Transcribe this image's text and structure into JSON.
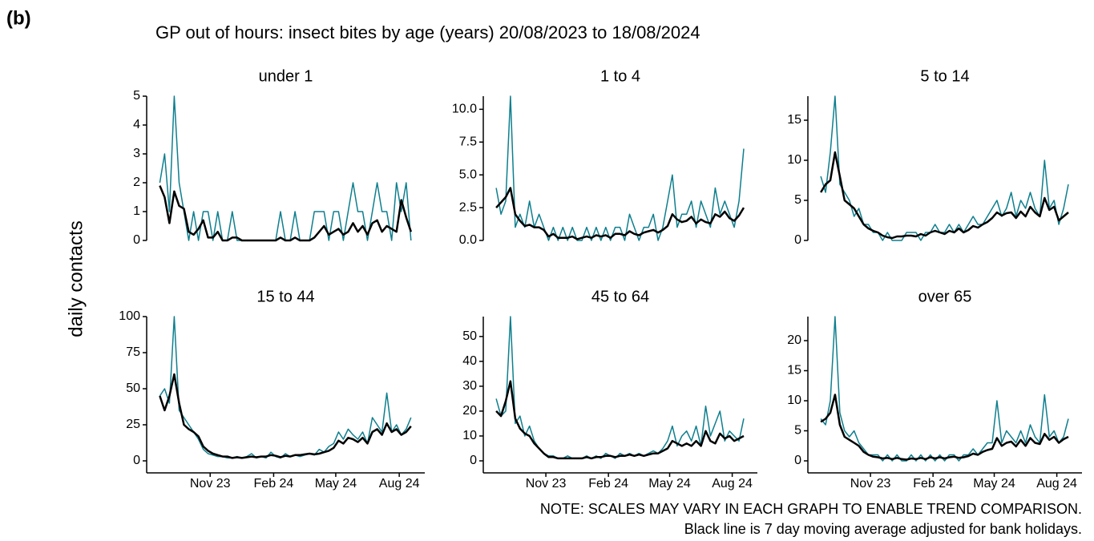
{
  "panel_label": "(b)",
  "chart_data": {
    "type": "line",
    "title": "GP out of hours: insect bites by age (years) 20/08/2023 to 18/08/2024",
    "y_label": "daily contacts",
    "x": [
      0,
      7,
      14,
      21,
      28,
      35,
      42,
      49,
      56,
      63,
      70,
      77,
      84,
      91,
      98,
      105,
      112,
      119,
      126,
      133,
      140,
      147,
      154,
      161,
      168,
      175,
      182,
      189,
      196,
      203,
      210,
      217,
      224,
      231,
      238,
      245,
      252,
      259,
      266,
      273,
      280,
      287,
      294,
      301,
      308,
      315,
      322,
      329,
      336,
      343,
      350,
      357,
      364
    ],
    "xlim": [
      -19,
      384
    ],
    "xticks": [
      {
        "value": 73,
        "label": "Nov 23"
      },
      {
        "value": 165,
        "label": "Feb 24"
      },
      {
        "value": 255,
        "label": "May 24"
      },
      {
        "value": 347,
        "label": "Aug 24"
      }
    ],
    "panels": [
      {
        "title": "under 1",
        "ylim": [
          0,
          5
        ],
        "yticks": [
          0,
          1,
          2,
          3,
          4,
          5
        ],
        "series": [
          {
            "color": "#0e7f8e",
            "values": [
              2,
              3,
              1,
              5,
              2,
              1,
              0,
              1,
              0,
              1,
              1,
              0,
              1,
              0,
              0,
              1,
              0,
              0,
              0,
              0,
              0,
              0,
              0,
              0,
              0,
              1,
              0,
              0,
              1,
              0,
              0,
              0,
              1,
              1,
              1,
              0,
              1,
              1,
              0,
              1,
              2,
              1,
              1,
              0,
              1,
              2,
              1,
              1,
              0,
              2,
              1,
              2,
              0
            ]
          },
          {
            "color": "#000000",
            "values": [
              1.9,
              1.5,
              0.6,
              1.7,
              1.2,
              1.1,
              0.3,
              0.2,
              0.4,
              0.7,
              0.1,
              0.1,
              0.3,
              0,
              0,
              0.1,
              0.1,
              0,
              0,
              0,
              0,
              0,
              0,
              0,
              0,
              0.1,
              0,
              0,
              0.1,
              0,
              0,
              0,
              0.1,
              0.3,
              0.5,
              0.2,
              0.3,
              0.4,
              0.2,
              0.3,
              0.6,
              0.3,
              0.5,
              0.2,
              0.6,
              0.7,
              0.3,
              0.5,
              0.4,
              0.3,
              1.4,
              0.8,
              0.3
            ]
          }
        ]
      },
      {
        "title": "1 to 4",
        "ylim": [
          0,
          11
        ],
        "yticks": [
          {
            "value": 0,
            "label": "0.0"
          },
          {
            "value": 2.5,
            "label": "2.5"
          },
          {
            "value": 5,
            "label": "5.0"
          },
          {
            "value": 7.5,
            "label": "7.5"
          },
          {
            "value": 10,
            "label": "10.0"
          }
        ],
        "series": [
          {
            "color": "#0e7f8e",
            "values": [
              4,
              2,
              3,
              11,
              1,
              2,
              1,
              3,
              1,
              2,
              1,
              0,
              1,
              0,
              1,
              0,
              1,
              0,
              0,
              1,
              0,
              1,
              0,
              1,
              0,
              1,
              1,
              0,
              2,
              1,
              0,
              1,
              1,
              2,
              0,
              1,
              3,
              5,
              1,
              2,
              2,
              3,
              1,
              3,
              2,
              1,
              4,
              2,
              3,
              2,
              1,
              3,
              7
            ]
          },
          {
            "color": "#000000",
            "values": [
              2.5,
              2.9,
              3.3,
              4.0,
              2.0,
              1.5,
              1.1,
              1.2,
              1.0,
              1.0,
              0.8,
              0.3,
              0.5,
              0.2,
              0.2,
              0.2,
              0.3,
              0.1,
              0.2,
              0.3,
              0.2,
              0.4,
              0.3,
              0.4,
              0.2,
              0.5,
              0.5,
              0.4,
              0.7,
              0.5,
              0.4,
              0.6,
              0.7,
              0.8,
              0.6,
              0.8,
              1.1,
              2.0,
              1.6,
              1.4,
              1.5,
              1.8,
              1.3,
              1.6,
              1.4,
              1.3,
              2.0,
              1.8,
              2.2,
              1.7,
              1.5,
              1.9,
              2.5
            ]
          }
        ]
      },
      {
        "title": "5 to 14",
        "ylim": [
          0,
          18
        ],
        "yticks": [
          0,
          5,
          10,
          15
        ],
        "series": [
          {
            "color": "#0e7f8e",
            "values": [
              8,
              6,
              11,
              18,
              7,
              6,
              5,
              3,
              4,
              2,
              2,
              1,
              1,
              0,
              1,
              0,
              0,
              0,
              1,
              1,
              1,
              0,
              1,
              1,
              2,
              1,
              1,
              2,
              1,
              2,
              1,
              2,
              3,
              2,
              2,
              3,
              4,
              5,
              3,
              4,
              6,
              3,
              5,
              4,
              6,
              4,
              3,
              10,
              4,
              5,
              2,
              4,
              7
            ]
          },
          {
            "color": "#000000",
            "values": [
              6,
              7,
              7.5,
              11,
              8,
              5,
              4.5,
              4,
              3,
              2,
              1.5,
              1.2,
              1,
              0.6,
              0.4,
              0.3,
              0.5,
              0.5,
              0.6,
              0.6,
              0.5,
              0.8,
              0.6,
              1,
              1.2,
              1,
              0.8,
              1.2,
              1,
              1.5,
              1,
              1.3,
              1.8,
              1.6,
              2,
              2.3,
              2.8,
              3.5,
              3.1,
              3.4,
              3.5,
              2.8,
              3.6,
              3,
              4.2,
              3.5,
              3,
              5.3,
              3.8,
              4.2,
              2.5,
              3,
              3.5
            ]
          }
        ]
      },
      {
        "title": "15 to 44",
        "ylim": [
          0,
          100
        ],
        "yticks": [
          0,
          25,
          50,
          75,
          100
        ],
        "series": [
          {
            "color": "#0e7f8e",
            "values": [
              45,
              50,
              40,
              100,
              35,
              30,
              25,
              20,
              15,
              8,
              5,
              4,
              3,
              3,
              2,
              2,
              3,
              2,
              3,
              5,
              2,
              3,
              2,
              6,
              3,
              2,
              5,
              3,
              4,
              3,
              4,
              5,
              4,
              8,
              6,
              10,
              12,
              20,
              15,
              22,
              18,
              15,
              20,
              12,
              30,
              25,
              20,
              47,
              20,
              25,
              18,
              22,
              30
            ]
          },
          {
            "color": "#000000",
            "values": [
              45,
              35,
              45,
              60,
              40,
              25,
              22,
              20,
              17,
              10,
              7,
              5,
              4,
              3,
              3,
              2,
              2.5,
              2,
              2.5,
              3,
              2.5,
              3,
              3,
              4,
              3.5,
              2.5,
              3.5,
              3,
              4,
              4,
              4.5,
              5,
              4.5,
              5,
              6,
              7,
              9,
              14,
              12,
              16,
              15,
              13,
              16,
              12,
              20,
              22,
              18,
              26,
              20,
              22,
              18,
              20,
              24
            ]
          }
        ]
      },
      {
        "title": "45 to 64",
        "ylim": [
          0,
          58
        ],
        "yticks": [
          0,
          10,
          20,
          30,
          40,
          50
        ],
        "series": [
          {
            "color": "#0e7f8e",
            "values": [
              25,
              18,
              20,
              58,
              15,
              18,
              10,
              14,
              8,
              5,
              3,
              2,
              2,
              1,
              1,
              2,
              1,
              1,
              1,
              2,
              1,
              2,
              1,
              3,
              2,
              1,
              3,
              2,
              3,
              2,
              3,
              2,
              3,
              4,
              3,
              5,
              8,
              14,
              6,
              10,
              12,
              8,
              14,
              6,
              22,
              10,
              15,
              20,
              8,
              12,
              10,
              8,
              17
            ]
          },
          {
            "color": "#000000",
            "values": [
              20,
              18,
              24,
              32,
              17,
              13,
              11,
              10,
              7,
              5,
              3,
              1.5,
              1.5,
              1,
              1,
              1,
              1,
              1,
              1,
              1.5,
              1,
              1.5,
              1.5,
              2,
              2,
              1.5,
              2,
              2,
              2.5,
              2,
              2.5,
              2,
              2.5,
              3,
              3,
              4,
              5,
              8,
              7,
              6,
              7,
              6,
              8,
              6,
              12,
              8,
              7,
              11,
              9,
              10,
              8,
              9,
              10
            ]
          }
        ]
      },
      {
        "title": "over 65",
        "ylim": [
          0,
          24
        ],
        "yticks": [
          0,
          5,
          10,
          15,
          20
        ],
        "series": [
          {
            "color": "#0e7f8e",
            "values": [
              7,
              6,
              10,
              24,
              8,
              5,
              4,
              5,
              3,
              2,
              1,
              1,
              1,
              0,
              1,
              0,
              1,
              0,
              0,
              1,
              0,
              1,
              0,
              1,
              0,
              1,
              0,
              1,
              1,
              0,
              1,
              1,
              2,
              1,
              2,
              3,
              3,
              10,
              3,
              5,
              4,
              3,
              5,
              3,
              6,
              4,
              3,
              11,
              4,
              5,
              3,
              4,
              7
            ]
          },
          {
            "color": "#000000",
            "values": [
              6.5,
              7,
              8,
              11,
              6,
              4,
              3.5,
              3,
              2.5,
              1.5,
              1,
              0.7,
              0.6,
              0.4,
              0.5,
              0.3,
              0.5,
              0.3,
              0.2,
              0.4,
              0.3,
              0.5,
              0.3,
              0.6,
              0.4,
              0.6,
              0.4,
              0.6,
              0.7,
              0.5,
              0.6,
              0.8,
              1.2,
              1,
              1.5,
              1.8,
              2,
              3.8,
              2.5,
              3,
              3.2,
              2.4,
              3.5,
              2.5,
              3.8,
              3,
              2.8,
              4.5,
              3.5,
              4,
              3,
              3.6,
              4
            ]
          }
        ]
      }
    ],
    "notes": [
      "NOTE: SCALES MAY VARY IN EACH GRAPH TO ENABLE TREND COMPARISON.",
      "Black line is 7 day moving average adjusted for bank holidays."
    ]
  }
}
